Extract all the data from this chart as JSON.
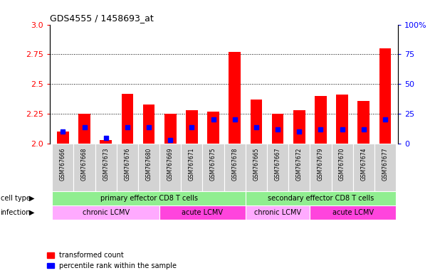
{
  "title": "GDS4555 / 1458693_at",
  "samples": [
    "GSM767666",
    "GSM767668",
    "GSM767673",
    "GSM767676",
    "GSM767680",
    "GSM767669",
    "GSM767671",
    "GSM767675",
    "GSM767678",
    "GSM767665",
    "GSM767667",
    "GSM767672",
    "GSM767679",
    "GSM767670",
    "GSM767674",
    "GSM767677"
  ],
  "transformed_count": [
    2.1,
    2.25,
    2.03,
    2.42,
    2.33,
    2.25,
    2.28,
    2.27,
    2.77,
    2.37,
    2.25,
    2.28,
    2.4,
    2.41,
    2.36,
    2.8
  ],
  "percentile_rank": [
    10,
    14,
    5,
    14,
    14,
    3,
    14,
    20,
    20,
    14,
    12,
    10,
    12,
    12,
    12,
    20
  ],
  "ymin": 2.0,
  "ymax": 3.0,
  "yticks": [
    2.0,
    2.25,
    2.5,
    2.75,
    3.0
  ],
  "right_yticks": [
    0,
    25,
    50,
    75,
    100
  ],
  "bar_color_red": "#ff0000",
  "bar_color_blue": "#0000ff",
  "cell_type_groups": [
    {
      "label": "primary effector CD8 T cells",
      "start": 0,
      "end": 8,
      "color": "#90ee90"
    },
    {
      "label": "secondary effector CD8 T cells",
      "start": 9,
      "end": 15,
      "color": "#90ee90"
    }
  ],
  "infection_groups": [
    {
      "label": "chronic LCMV",
      "start": 0,
      "end": 4,
      "color": "#ffaaff"
    },
    {
      "label": "acute LCMV",
      "start": 5,
      "end": 8,
      "color": "#ff44dd"
    },
    {
      "label": "chronic LCMV",
      "start": 9,
      "end": 11,
      "color": "#ffaaff"
    },
    {
      "label": "acute LCMV",
      "start": 12,
      "end": 15,
      "color": "#ff44dd"
    }
  ],
  "cell_type_label": "cell type",
  "infection_label": "infection",
  "legend_red": "transformed count",
  "legend_blue": "percentile rank within the sample",
  "bar_width": 0.55,
  "bg_color": "#ffffff",
  "tick_label_color_left": "#ff0000",
  "tick_label_color_right": "#0000ff",
  "sample_box_color": "#d3d3d3",
  "dotted_lines": [
    2.25,
    2.5,
    2.75
  ]
}
